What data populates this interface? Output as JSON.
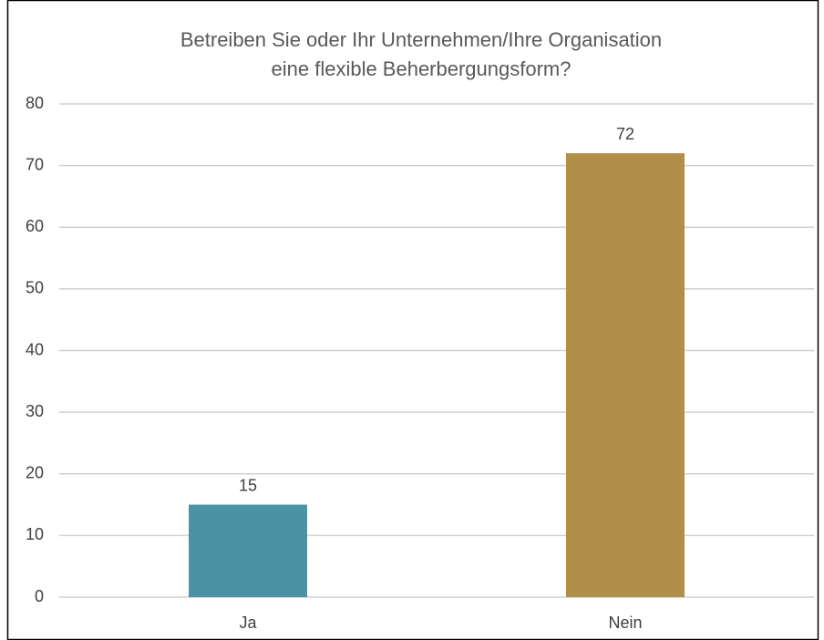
{
  "chart_data": {
    "type": "bar",
    "title": [
      "Betreiben Sie oder Ihr Unternehmen/Ihre Organisation",
      "eine flexible Beherbergungsform?"
    ],
    "categories": [
      "Ja",
      "Nein"
    ],
    "values": [
      15,
      72
    ],
    "colors": [
      "#4a92a4",
      "#b18f48"
    ],
    "ylim": [
      0,
      80
    ],
    "yticks": [
      0,
      10,
      20,
      30,
      40,
      50,
      60,
      70,
      80
    ],
    "grid": true,
    "data_labels": true
  }
}
